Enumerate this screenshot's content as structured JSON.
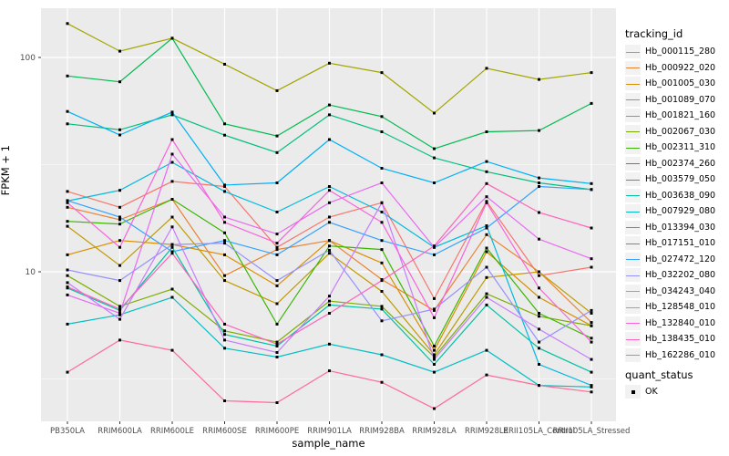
{
  "figure": {
    "y_axis_title": "FPKM + 1",
    "x_axis_title": "sample_name",
    "legend": {
      "tracking_title": "tracking_id",
      "quant_title": "quant_status",
      "quant_items": [
        {
          "label": "OK",
          "marker": "black-square"
        }
      ]
    },
    "colors": {
      "panel_bg": "#EBEBEB",
      "grid": "#FFFFFF",
      "legend_key_bg": "#F2F2F2",
      "axis_text": "#4D4D4D",
      "point": "#000000"
    }
  },
  "chart_data": {
    "type": "line",
    "title": "",
    "xlabel": "sample_name",
    "ylabel": "FPKM + 1",
    "y_scale": "log10",
    "y_tick_labels": [
      "10",
      "100"
    ],
    "y_ticks": [
      10,
      100
    ],
    "y_minor_ticks": [
      3.162,
      31.62
    ],
    "ylim": [
      2.1,
      165
    ],
    "grid": true,
    "legend_position": "right",
    "point_marker": {
      "shape": "square",
      "color": "#000000",
      "size": 3
    },
    "categories": [
      "PB350LA",
      "RRIM600LA",
      "RRIM600LE",
      "RRIM600SE",
      "RRIM600PE",
      "RRIM901LA",
      "RRIM928BA",
      "RRIM928LA",
      "RRIM928LE",
      "RRII105LA_Control",
      "RRII105LA_Stressed"
    ],
    "series": [
      {
        "name": "Hb_000115_280",
        "color": "#F8766D",
        "values": [
          23.7,
          20,
          26.4,
          25,
          13,
          18,
          21,
          7.5,
          21.3,
          9.6,
          10.5
        ]
      },
      {
        "name": "Hb_000922_020",
        "color": "#EA8331",
        "values": [
          20,
          17.5,
          21.8,
          9.6,
          12.7,
          14,
          9.2,
          6.6,
          14.9,
          10,
          5.8
        ]
      },
      {
        "name": "Hb_001005_030",
        "color": "#D89000",
        "values": [
          12,
          14,
          13.4,
          12,
          8.6,
          14,
          11,
          4.3,
          12.4,
          7.6,
          5.6
        ]
      },
      {
        "name": "Hb_001089_070",
        "color": "#C09B00",
        "values": [
          16.3,
          10.7,
          18,
          9.1,
          7.1,
          12.2,
          8.1,
          4.1,
          9.4,
          10,
          6.4
        ]
      },
      {
        "name": "Hb_001821_160",
        "color": "#A3A500",
        "values": [
          144,
          107,
          123,
          93,
          70,
          94,
          85,
          55,
          89,
          79,
          85
        ]
      },
      {
        "name": "Hb_002067_030",
        "color": "#7CAE00",
        "values": [
          9.6,
          6.9,
          8.3,
          5.3,
          4.7,
          7.3,
          6.9,
          4.0,
          7.9,
          6.2,
          5.6
        ]
      },
      {
        "name": "Hb_002311_310",
        "color": "#39B600",
        "values": [
          17.2,
          16.7,
          21.8,
          15.2,
          5.7,
          13.2,
          12.7,
          4.5,
          12.9,
          6.4,
          4.9
        ]
      },
      {
        "name": "Hb_002374_260",
        "color": "#00BB4E",
        "values": [
          82,
          77,
          123,
          49,
          43,
          60,
          53,
          37.5,
          45,
          45.6,
          61
        ]
      },
      {
        "name": "Hb_003579_050",
        "color": "#00BF7D",
        "values": [
          49,
          46,
          54,
          43.4,
          36,
          54,
          45,
          34,
          29.3,
          26,
          24.2
        ]
      },
      {
        "name": "Hb_003638_090",
        "color": "#00C1A3",
        "values": [
          8.4,
          6.6,
          13,
          5.1,
          4.5,
          7.0,
          6.7,
          3.7,
          7.0,
          4.4,
          3.4
        ]
      },
      {
        "name": "Hb_007929_080",
        "color": "#00BFC4",
        "values": [
          5.7,
          6.3,
          7.6,
          4.4,
          4.0,
          4.6,
          4.1,
          3.4,
          4.3,
          2.95,
          2.9
        ]
      },
      {
        "name": "Hb_013394_030",
        "color": "#00BADE",
        "values": [
          21.4,
          24,
          32.4,
          23.7,
          19,
          25,
          19,
          13,
          16.4,
          3.7,
          2.95
        ]
      },
      {
        "name": "Hb_017151_010",
        "color": "#00B0F6",
        "values": [
          56,
          43.5,
          55.6,
          25.4,
          26,
          41.4,
          30.4,
          26,
          32.7,
          27.4,
          25.8
        ]
      },
      {
        "name": "Hb_027472_120",
        "color": "#35A2FF",
        "values": [
          21.5,
          18,
          12.4,
          14,
          12,
          17,
          14,
          12,
          16,
          25,
          24.2
        ]
      },
      {
        "name": "Hb_032202_080",
        "color": "#9590FF",
        "values": [
          10.2,
          9.1,
          13.4,
          13.6,
          9.1,
          12.6,
          5.9,
          6.7,
          10.5,
          4.7,
          6.6
        ]
      },
      {
        "name": "Hb_034243_040",
        "color": "#C77CFF",
        "values": [
          8.9,
          6.0,
          16.2,
          4.8,
          4.2,
          7.7,
          21,
          3.9,
          7.6,
          5.4,
          3.9
        ]
      },
      {
        "name": "Hb_128548_010",
        "color": "#E76BF3",
        "values": [
          7.8,
          6.4,
          35.4,
          18,
          15,
          21,
          26,
          13,
          22.4,
          14.2,
          11.5
        ]
      },
      {
        "name": "Hb_132840_010",
        "color": "#FA62DB",
        "values": [
          21,
          13,
          41.4,
          17,
          13.6,
          24,
          17,
          6.1,
          21,
          8.4,
          4.7
        ]
      },
      {
        "name": "Hb_138435_010",
        "color": "#FF62BC",
        "values": [
          8.5,
          6.7,
          12.2,
          5.7,
          4.6,
          6.4,
          9.1,
          13.2,
          25.8,
          18.9,
          16
        ]
      },
      {
        "name": "Hb_162286_010",
        "color": "#FF6A98",
        "values": [
          3.4,
          4.8,
          4.3,
          2.5,
          2.45,
          3.45,
          3.05,
          2.3,
          3.3,
          2.95,
          2.75
        ]
      }
    ]
  }
}
